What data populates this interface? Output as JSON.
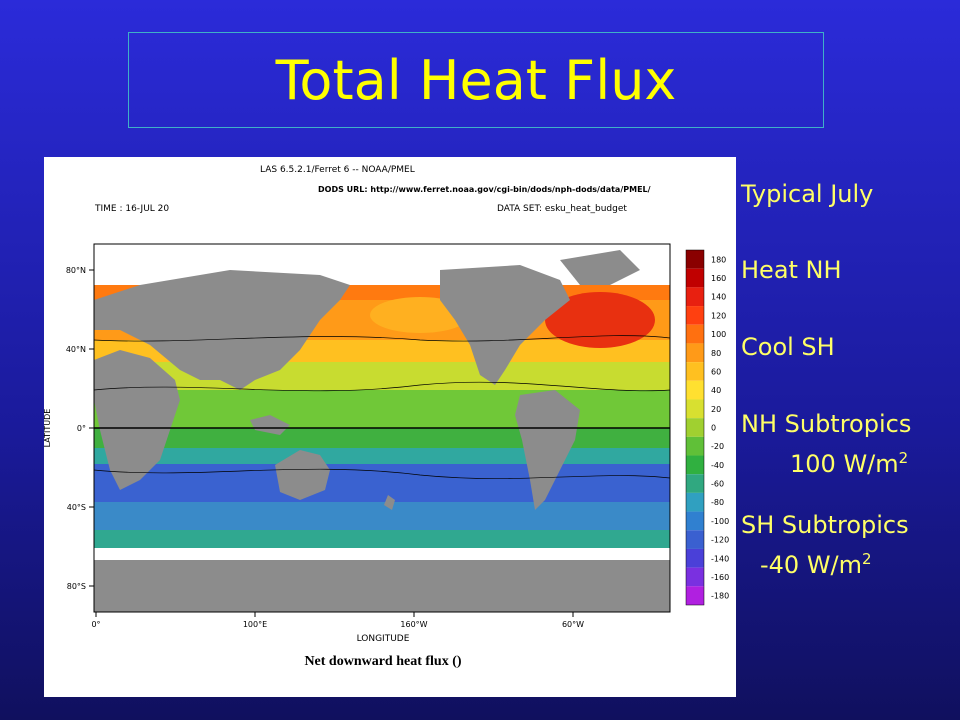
{
  "title": "Total Heat Flux",
  "figure": {
    "header": {
      "line1": "LAS 6.5.2.1/Ferret 6 --  NOAA/PMEL",
      "line2": "DODS URL: http://www.ferret.noaa.gov/cgi-bin/dods/nph-dods/data/PMEL/",
      "time": "TIME : 16-JUL 20",
      "dataset": "DATA SET: esku_heat_budget"
    },
    "y_axis_label": "LATITUDE",
    "y_ticks": [
      "80°N",
      "40°N",
      "0°",
      "40°S",
      "80°S"
    ],
    "x_axis_label": "LONGITUDE",
    "x_ticks": [
      "0°",
      "100°E",
      "160°W",
      "60°W"
    ],
    "caption": "Net downward heat flux ()",
    "colorbar_labels": [
      180,
      160,
      140,
      120,
      100,
      80,
      60,
      40,
      20,
      0,
      -20,
      -40,
      -60,
      -80,
      -100,
      -120,
      -140,
      -160,
      -180
    ]
  },
  "notes": [
    {
      "label": "Typical July"
    },
    {
      "label": "Heat NH"
    },
    {
      "label": "Cool SH"
    },
    {
      "label": "NH Subtropics",
      "value": "100 W/m",
      "exponent": "2"
    },
    {
      "label": "SH Subtropics",
      "value": "-40 W/m",
      "exponent": "2"
    }
  ]
}
